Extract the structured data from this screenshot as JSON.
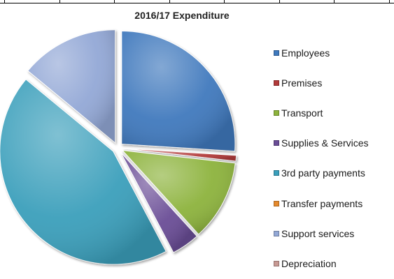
{
  "chart_data": {
    "type": "pie",
    "title": "2016/17 Expenditure",
    "series": [
      {
        "name": "Employees",
        "value": 26.0,
        "color": "#3f79bd"
      },
      {
        "name": "Premises",
        "value": 0.8,
        "color": "#b23b3b"
      },
      {
        "name": "Transport",
        "value": 11.5,
        "color": "#8db33c"
      },
      {
        "name": "Supplies & Services",
        "value": 4.0,
        "color": "#6a4d96"
      },
      {
        "name": "3rd party payments",
        "value": 43.7,
        "color": "#3a9fbb"
      },
      {
        "name": "Transfer payments",
        "value": 0.0,
        "color": "#e58a2e"
      },
      {
        "name": "Support services",
        "value": 14.0,
        "color": "#93a8d6"
      },
      {
        "name": "Depreciation",
        "value": 0.0,
        "color": "#c89a94"
      }
    ],
    "legend_position": "right"
  }
}
